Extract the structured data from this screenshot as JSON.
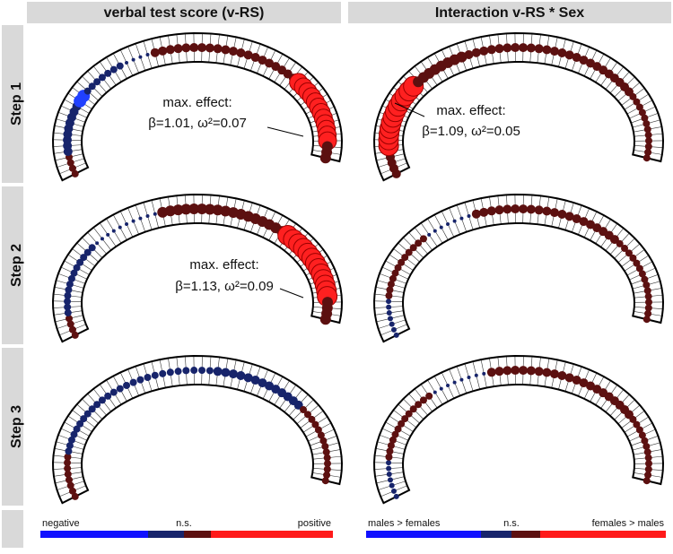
{
  "headers": [
    "verbal test score (v-RS)",
    "Interaction v-RS * Sex"
  ],
  "steps": [
    "Step 1",
    "Step 2",
    "Step 3"
  ],
  "annotations": [
    {
      "title": "max. effect:",
      "stats": "β=1.01, ω²=0.07"
    },
    {
      "title": "max. effect:",
      "stats": "β=1.09, ω²=0.05"
    },
    {
      "title": "max. effect:",
      "stats": "β=1.13, ω²=0.09"
    }
  ],
  "legends": [
    {
      "low": "negative",
      "mid": "n.s.",
      "high": "positive"
    },
    {
      "low": "males > females",
      "mid": "n.s.",
      "high": "females > males"
    }
  ]
}
